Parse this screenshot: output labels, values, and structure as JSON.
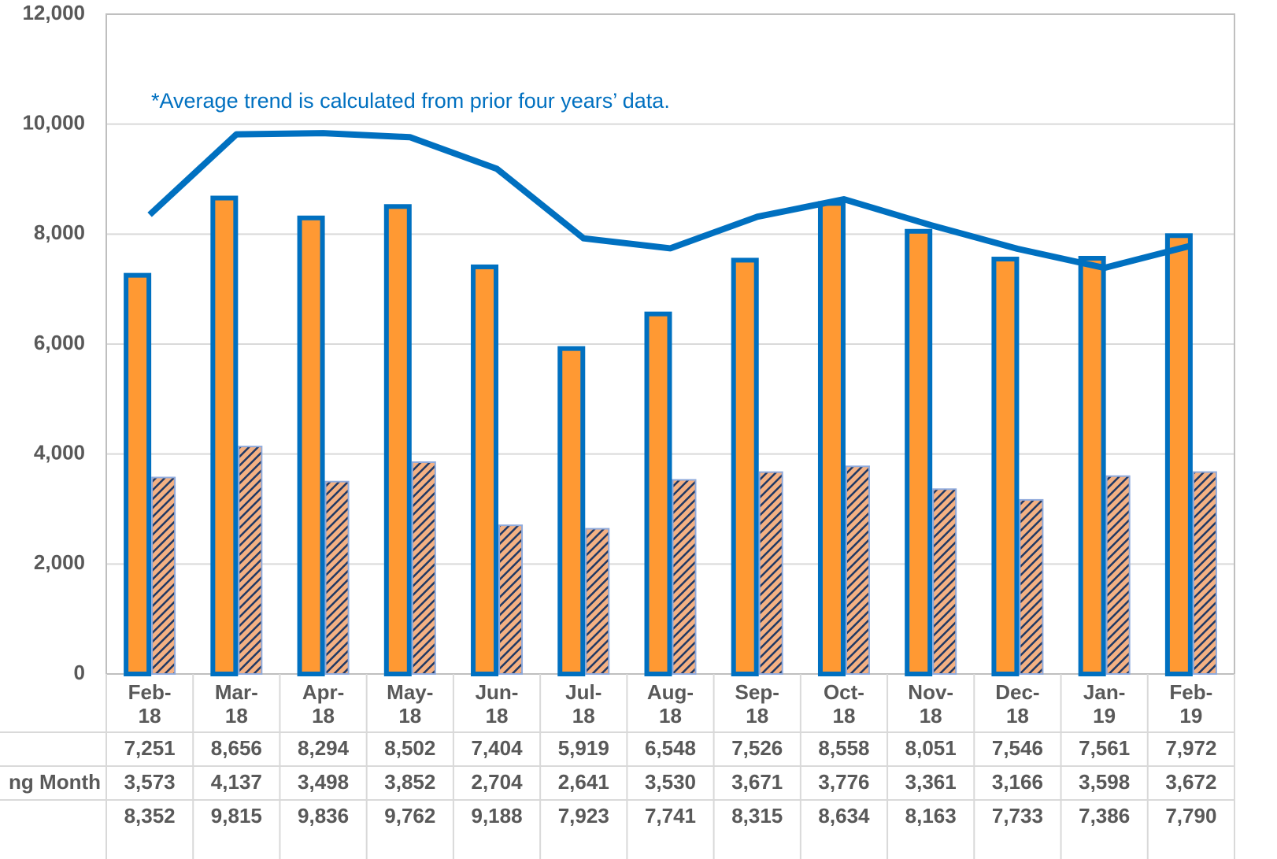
{
  "chart_data": {
    "type": "bar",
    "annotation": "*Average trend is calculated from prior four years’ data.",
    "categories": [
      "Feb-18",
      "Mar-18",
      "Apr-18",
      "May-18",
      "Jun-18",
      "Jul-18",
      "Aug-18",
      "Sep-18",
      "Oct-18",
      "Nov-18",
      "Dec-18",
      "Jan-19",
      "Feb-19"
    ],
    "series": [
      {
        "name": null,
        "type": "bar",
        "color": "#ff9933",
        "edge": "#0070c0",
        "values": [
          7251,
          8656,
          8294,
          8502,
          7404,
          5919,
          6548,
          7526,
          8558,
          8051,
          7546,
          7561,
          7972
        ],
        "value_labels": [
          "7,251",
          "8,656",
          "8,294",
          "8,502",
          "7,404",
          "5,919",
          "6,548",
          "7,526",
          "8,558",
          "8,051",
          "7,546",
          "7,561",
          "7,972"
        ]
      },
      {
        "name": "ng Month",
        "type": "bar",
        "color": "#f4b183",
        "hatch": "#1f3864",
        "edge": "#8faadc",
        "values": [
          3573,
          4137,
          3498,
          3852,
          2704,
          2641,
          3530,
          3671,
          3776,
          3361,
          3166,
          3598,
          3672
        ],
        "value_labels": [
          "3,573",
          "4,137",
          "3,498",
          "3,852",
          "2,704",
          "2,641",
          "3,530",
          "3,671",
          "3,776",
          "3,361",
          "3,166",
          "3,598",
          "3,672"
        ]
      },
      {
        "name": null,
        "type": "line",
        "color": "#0070c0",
        "values": [
          8352,
          9815,
          9836,
          9762,
          9188,
          7923,
          7741,
          8315,
          8634,
          8163,
          7733,
          7386,
          7790
        ],
        "value_labels": [
          "8,352",
          "9,815",
          "9,836",
          "9,762",
          "9,188",
          "7,923",
          "7,741",
          "8,315",
          "8,634",
          "8,163",
          "7,733",
          "7,386",
          "7,790"
        ]
      }
    ],
    "ylim": [
      0,
      12000
    ],
    "yticks": [
      0,
      {
        "value": 2000,
        "label": "2,000"
      },
      {
        "value": 4000,
        "label": "4,000"
      },
      {
        "value": 6000,
        "label": "6,000"
      },
      {
        "value": 8000,
        "label": "8,000"
      },
      {
        "value": 10000,
        "label": "10,000"
      },
      {
        "value": 12000,
        "label": "12,000"
      }
    ],
    "grid": true
  }
}
